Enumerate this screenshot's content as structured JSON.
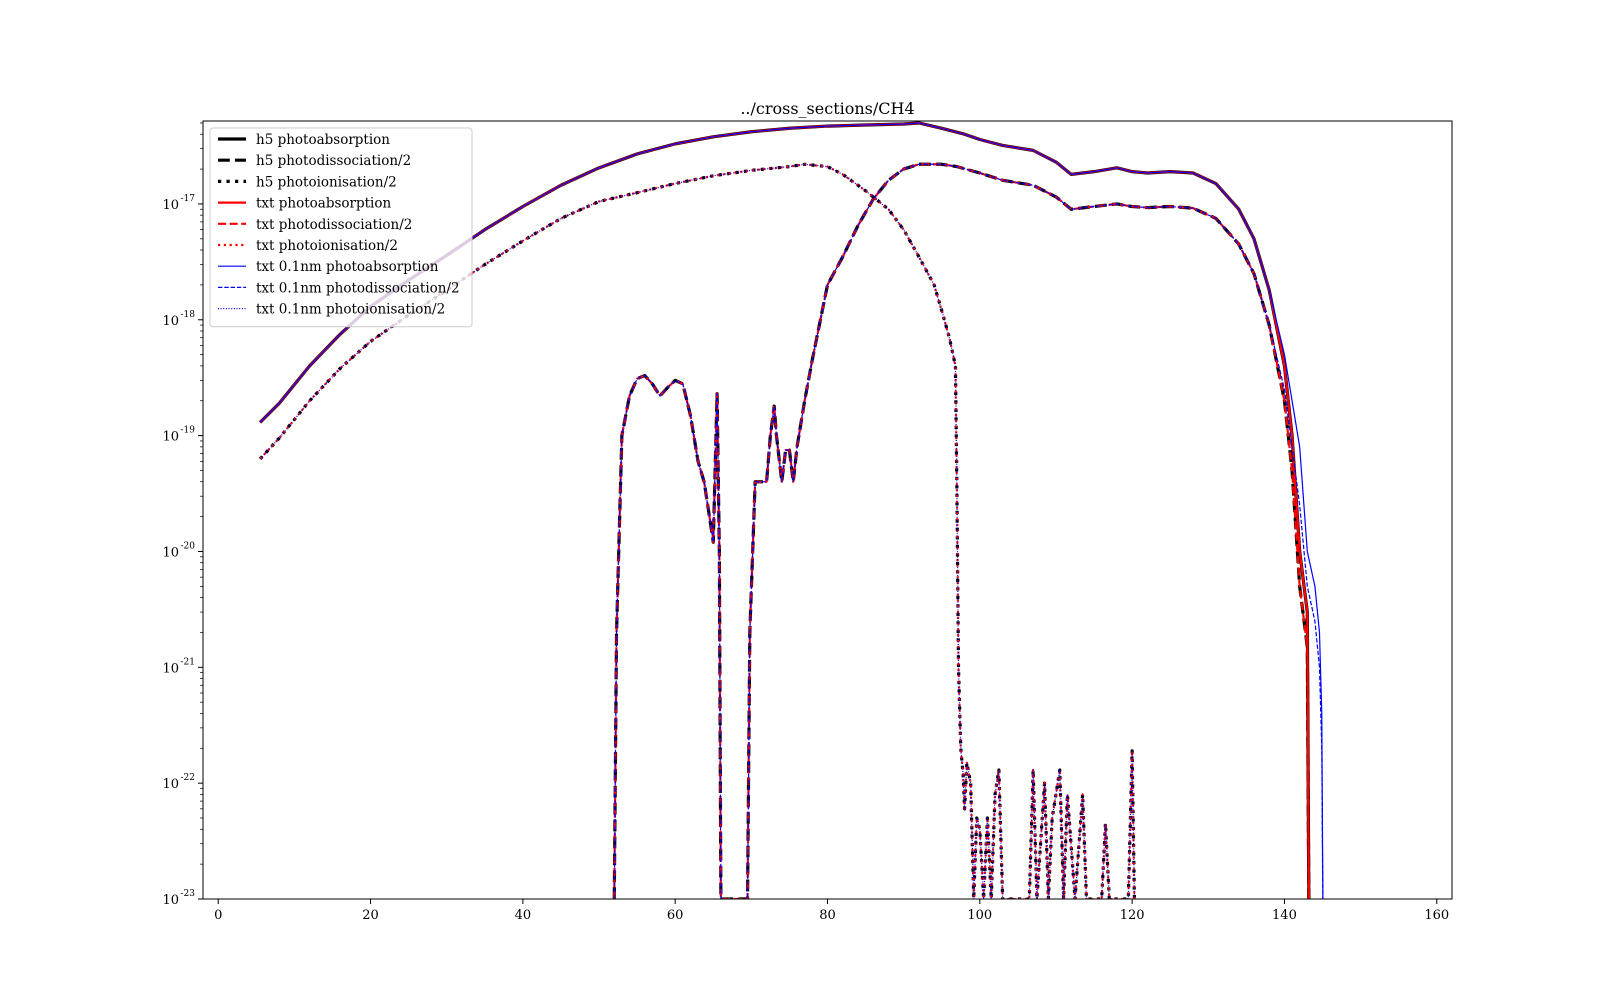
{
  "chart_data": {
    "type": "line",
    "title": "../cross_sections/CH4",
    "xlabel": "",
    "ylabel": "",
    "xlim": [
      -2,
      162
    ],
    "ylim": [
      1e-23,
      5.2e-17
    ],
    "yscale": "log",
    "xticks": [
      0,
      20,
      40,
      60,
      80,
      100,
      120,
      140,
      160
    ],
    "xtick_labels": [
      "0",
      "20",
      "40",
      "60",
      "80",
      "100",
      "120",
      "140",
      "160"
    ],
    "yticks": [
      1e-23,
      1e-22,
      1e-21,
      1e-20,
      1e-19,
      1e-18,
      1e-17
    ],
    "ytick_base_labels": [
      "10",
      "10",
      "10",
      "10",
      "10",
      "10",
      "10"
    ],
    "ytick_exponents": [
      "-23",
      "-22",
      "-21",
      "-20",
      "-19",
      "-18",
      "-17"
    ],
    "legend_position": "upper left",
    "grid": false,
    "series": [
      {
        "name": "h5 photoabsorption",
        "color": "#000000",
        "style": "solid",
        "width": 3.2,
        "x": [
          5.5,
          8,
          12,
          16,
          20,
          25,
          30,
          35,
          40,
          45,
          50,
          55,
          60,
          65,
          70,
          75,
          80,
          85,
          90,
          92,
          95,
          98,
          100,
          103,
          107,
          110,
          112,
          115,
          118,
          120,
          122,
          125,
          128,
          131,
          134,
          136,
          138,
          140,
          141,
          142,
          143,
          143.2
        ],
        "y": [
          1.3e-19,
          1.9e-19,
          4e-19,
          7.5e-19,
          1.3e-18,
          2.2e-18,
          3.6e-18,
          6e-18,
          9.5e-18,
          1.45e-17,
          2.05e-17,
          2.7e-17,
          3.3e-17,
          3.8e-17,
          4.2e-17,
          4.5e-17,
          4.7e-17,
          4.8e-17,
          4.9e-17,
          5e-17,
          4.5e-17,
          4e-17,
          3.6e-17,
          3.2e-17,
          2.9e-17,
          2.3e-17,
          1.8e-17,
          1.9e-17,
          2.05e-17,
          1.9e-17,
          1.85e-17,
          1.9e-17,
          1.85e-17,
          1.5e-17,
          9e-18,
          5e-18,
          1.8e-18,
          4e-19,
          1e-19,
          1e-20,
          3e-21,
          1e-23
        ]
      },
      {
        "name": "h5 photodissociation/2",
        "color": "#000000",
        "style": "dashed",
        "width": 3.2,
        "x": [
          52,
          52.3,
          53,
          54,
          55,
          56,
          57,
          58,
          59,
          60,
          61,
          62,
          63,
          63.8,
          64.5,
          65,
          65.5,
          65.8,
          66,
          66.2,
          69.5,
          69.8,
          70.5,
          72,
          72.5,
          73,
          73.3,
          74,
          74.5,
          75,
          75.5,
          76,
          77,
          78,
          80,
          82,
          84,
          86,
          88,
          90,
          92,
          95,
          97,
          100,
          103,
          107,
          110,
          112,
          115,
          118,
          120,
          122,
          125,
          128,
          131,
          134,
          136,
          138,
          140,
          141,
          142,
          143,
          143.2
        ],
        "y": [
          1e-23,
          2e-21,
          1e-19,
          2.2e-19,
          3.1e-19,
          3.3e-19,
          2.8e-19,
          2.2e-19,
          2.6e-19,
          3e-19,
          2.8e-19,
          1.5e-19,
          6e-20,
          4e-20,
          2e-20,
          1.2e-20,
          2.3e-19,
          1e-20,
          1e-23,
          1e-23,
          1e-23,
          2e-21,
          4e-20,
          4e-20,
          1e-19,
          1.8e-19,
          1e-19,
          4e-20,
          7.5e-20,
          7.5e-20,
          4e-20,
          8e-20,
          2e-19,
          4.5e-19,
          2e-18,
          3.5e-18,
          6.5e-18,
          1.1e-17,
          1.6e-17,
          2e-17,
          2.2e-17,
          2.2e-17,
          2.1e-17,
          1.85e-17,
          1.6e-17,
          1.45e-17,
          1.15e-17,
          9e-18,
          9.5e-18,
          1e-17,
          9.5e-18,
          9.3e-18,
          9.5e-18,
          9.2e-18,
          7.5e-18,
          4.5e-18,
          2.5e-18,
          9e-19,
          2e-19,
          5e-20,
          5e-21,
          1.5e-21,
          1e-23
        ]
      },
      {
        "name": "h5 photoionisation/2",
        "color": "#000000",
        "style": "dotted",
        "width": 3.2,
        "x": [
          5.5,
          8,
          12,
          16,
          20,
          25,
          30,
          35,
          40,
          45,
          50,
          55,
          60,
          65,
          70,
          75,
          77,
          80,
          82,
          85,
          88,
          90,
          92,
          94,
          95,
          96,
          96.8,
          97,
          97.2,
          97.5,
          97.8,
          98,
          98.3,
          98.8,
          99.2,
          99.6,
          100,
          100.5,
          101,
          101.5,
          102,
          102.5,
          103,
          103.5,
          106.5,
          107,
          107.5,
          108.5,
          109,
          109.5,
          110.5,
          111,
          111.5,
          112.5,
          113.5,
          114,
          114.5,
          116,
          116.5,
          117,
          119.5,
          120,
          120.3
        ],
        "y": [
          6.3e-20,
          9.5e-20,
          2e-19,
          3.8e-19,
          6.5e-19,
          1.1e-18,
          1.8e-18,
          3e-18,
          4.8e-18,
          7.5e-18,
          1.05e-17,
          1.25e-17,
          1.5e-17,
          1.75e-17,
          1.95e-17,
          2.1e-17,
          2.2e-17,
          2.1e-17,
          1.8e-17,
          1.3e-17,
          9e-18,
          6e-18,
          3.5e-18,
          2e-18,
          1.2e-18,
          7e-19,
          4e-19,
          3e-20,
          1e-21,
          2e-22,
          1.2e-22,
          6e-23,
          1.5e-22,
          1e-22,
          1e-23,
          5e-23,
          4e-23,
          1e-23,
          5e-23,
          1e-23,
          8e-23,
          1.3e-22,
          1e-23,
          1e-23,
          1e-23,
          1.3e-22,
          1e-23,
          1e-22,
          1e-23,
          5e-23,
          1.3e-22,
          1e-23,
          8e-23,
          1e-23,
          8e-23,
          1e-23,
          1e-23,
          1e-23,
          4.5e-23,
          1e-23,
          1e-23,
          1.9e-22,
          1e-23
        ]
      },
      {
        "name": "txt photoabsorption",
        "color": "#ff0000",
        "style": "solid",
        "width": 2.2,
        "copy_of": "h5 photoabsorption"
      },
      {
        "name": "txt photodissociation/2",
        "color": "#ff0000",
        "style": "dashed",
        "width": 2.2,
        "copy_of": "h5 photodissociation/2"
      },
      {
        "name": "txt photoionisation/2",
        "color": "#ff0000",
        "style": "dotted",
        "width": 2.2,
        "copy_of": "h5 photoionisation/2"
      },
      {
        "name": "txt 0.1nm photoabsorption",
        "color": "#0000ff",
        "style": "solid",
        "width": 1.2,
        "x": [
          5.5,
          8,
          12,
          16,
          20,
          25,
          30,
          35,
          40,
          45,
          50,
          55,
          60,
          65,
          70,
          75,
          80,
          85,
          90,
          92,
          95,
          98,
          100,
          103,
          107,
          110,
          112,
          115,
          118,
          120,
          122,
          125,
          128,
          131,
          134,
          136,
          138,
          140,
          141,
          142,
          143,
          144,
          144.6,
          144.9,
          145,
          145.05
        ],
        "y": [
          1.3e-19,
          1.9e-19,
          4e-19,
          7.5e-19,
          1.3e-18,
          2.2e-18,
          3.6e-18,
          6e-18,
          9.5e-18,
          1.45e-17,
          2.05e-17,
          2.7e-17,
          3.3e-17,
          3.8e-17,
          4.2e-17,
          4.5e-17,
          4.7e-17,
          4.8e-17,
          4.9e-17,
          5e-17,
          4.5e-17,
          4e-17,
          3.6e-17,
          3.2e-17,
          2.9e-17,
          2.3e-17,
          1.8e-17,
          1.9e-17,
          2.05e-17,
          1.9e-17,
          1.85e-17,
          1.9e-17,
          1.85e-17,
          1.5e-17,
          9e-18,
          5e-18,
          1.8e-18,
          5e-19,
          2e-19,
          8e-20,
          1e-20,
          5e-21,
          2e-21,
          4e-22,
          3e-23,
          1e-23
        ]
      },
      {
        "name": "txt 0.1nm photodissociation/2",
        "color": "#0000ff",
        "style": "dashed",
        "width": 1.2,
        "x": [
          52,
          52.3,
          53,
          54,
          55,
          56,
          57,
          58,
          59,
          60,
          61,
          62,
          63,
          63.8,
          64.5,
          65,
          65.5,
          65.8,
          66,
          66.2,
          69.5,
          69.8,
          70.5,
          72,
          72.5,
          73,
          73.3,
          74,
          74.5,
          75,
          75.5,
          76,
          77,
          78,
          80,
          82,
          84,
          86,
          88,
          90,
          92,
          95,
          97,
          100,
          103,
          107,
          110,
          112,
          115,
          118,
          120,
          122,
          125,
          128,
          131,
          134,
          136,
          138,
          140,
          141,
          142,
          143,
          144,
          144.6,
          144.9,
          145,
          145.05
        ],
        "y": [
          1e-23,
          2e-21,
          1e-19,
          2.2e-19,
          3.1e-19,
          3.3e-19,
          2.8e-19,
          2.2e-19,
          2.6e-19,
          3e-19,
          2.8e-19,
          1.5e-19,
          6e-20,
          4e-20,
          2e-20,
          1.2e-20,
          2.3e-19,
          1e-20,
          1e-23,
          1e-23,
          1e-23,
          2e-21,
          4e-20,
          4e-20,
          1e-19,
          1.8e-19,
          1e-19,
          4e-20,
          7.5e-20,
          7.5e-20,
          4e-20,
          8e-20,
          2e-19,
          4.5e-19,
          2e-18,
          3.5e-18,
          6.5e-18,
          1.1e-17,
          1.6e-17,
          2e-17,
          2.2e-17,
          2.2e-17,
          2.1e-17,
          1.85e-17,
          1.6e-17,
          1.45e-17,
          1.15e-17,
          9e-18,
          9.5e-18,
          1e-17,
          9.5e-18,
          9.3e-18,
          9.5e-18,
          9.2e-18,
          7.5e-18,
          4.5e-18,
          2.5e-18,
          9e-19,
          2.5e-19,
          8e-20,
          2.5e-20,
          5e-21,
          2.5e-21,
          1e-21,
          2e-22,
          2e-23,
          1e-23
        ]
      },
      {
        "name": "txt 0.1nm photoionisation/2",
        "color": "#0000ff",
        "style": "dotted",
        "width": 1.2,
        "copy_of": "h5 photoionisation/2"
      }
    ]
  }
}
